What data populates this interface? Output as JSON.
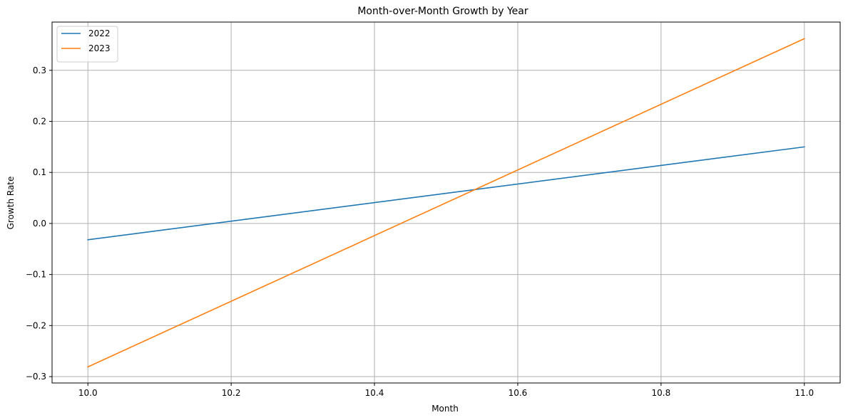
{
  "chart_data": {
    "type": "line",
    "title": "Month-over-Month Growth by Year",
    "xlabel": "Month",
    "ylabel": "Growth Rate",
    "x": [
      10.0,
      11.0
    ],
    "series": [
      {
        "name": "2022",
        "values": [
          -0.032,
          0.15
        ],
        "color": "#1f77b4"
      },
      {
        "name": "2023",
        "values": [
          -0.281,
          0.362
        ],
        "color": "#ff7f0e"
      }
    ],
    "xlim": [
      9.95,
      11.05
    ],
    "ylim": [
      -0.3125,
      0.3945
    ],
    "x_ticks": [
      10.0,
      10.2,
      10.4,
      10.6,
      10.8,
      11.0
    ],
    "x_tick_labels": [
      "10.0",
      "10.2",
      "10.4",
      "10.6",
      "10.8",
      "11.0"
    ],
    "y_ticks": [
      -0.3,
      -0.2,
      -0.1,
      0.0,
      0.1,
      0.2,
      0.3
    ],
    "y_tick_labels": [
      "−0.3",
      "−0.2",
      "−0.1",
      "0.0",
      "0.1",
      "0.2",
      "0.3"
    ],
    "grid": true,
    "legend_position": "top-left",
    "grid_color": "#b0b0b0",
    "axis_color": "#000000"
  }
}
